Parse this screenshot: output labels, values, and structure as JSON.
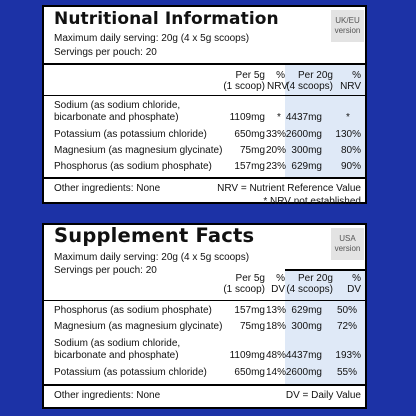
{
  "uk": {
    "title": "Nutritional Information",
    "badge": [
      "UK/EU",
      "version"
    ],
    "serving": "Maximum daily serving: 20g (4 x 5g scoops)",
    "servings_per_pouch": "Servings per pouch: 20",
    "headers": {
      "per5": [
        "Per 5g",
        "(1 scoop)"
      ],
      "pct5": [
        "%",
        "NRV"
      ],
      "per20": [
        "Per 20g",
        "(4 scoops)"
      ],
      "pct20": [
        "%",
        "NRV"
      ]
    },
    "rows": [
      {
        "name": [
          "Sodium (as sodium chloride,",
          "bicarbonate and phosphate)"
        ],
        "per5": "1109mg",
        "pct5": "*",
        "per20": "4437mg",
        "pct20": "*"
      },
      {
        "name": [
          "Potassium (as potassium chloride)"
        ],
        "per5": "650mg",
        "pct5": "33%",
        "per20": "2600mg",
        "pct20": "130%"
      },
      {
        "name": [
          "Magnesium (as magnesium glycinate)"
        ],
        "per5": "75mg",
        "pct5": "20%",
        "per20": "300mg",
        "pct20": "80%"
      },
      {
        "name": [
          "Phosphorus (as sodium phosphate)"
        ],
        "per5": "157mg",
        "pct5": "23%",
        "per20": "629mg",
        "pct20": "90%"
      }
    ],
    "other_ingredients": "Other ingredients: None",
    "footnote_1": "NRV = Nutrient Reference Value",
    "footnote_2": "* NRV not established"
  },
  "us": {
    "title": "Supplement Facts",
    "badge": [
      "USA",
      "version"
    ],
    "serving": "Maximum daily serving: 20g (4 x 5g scoops)",
    "servings_per_pouch": "Servings per pouch: 20",
    "headers": {
      "per5": [
        "Per 5g",
        "(1 scoop)"
      ],
      "pct5": [
        "%",
        "DV"
      ],
      "per20": [
        "Per 20g",
        "(4 scoops)"
      ],
      "pct20": [
        "%",
        "DV"
      ]
    },
    "rows": [
      {
        "name": [
          "Phosphorus (as sodium phosphate)"
        ],
        "per5": "157mg",
        "pct5": "13%",
        "per20": "629mg",
        "pct20": "50%"
      },
      {
        "name": [
          "Magnesium (as magnesium glycinate)"
        ],
        "per5": "75mg",
        "pct5": "18%",
        "per20": "300mg",
        "pct20": "72%"
      },
      {
        "name": [
          "Sodium (as sodium chloride,",
          "bicarbonate and phosphate)"
        ],
        "per5": "1109mg",
        "pct5": "48%",
        "per20": "4437mg",
        "pct20": "193%"
      },
      {
        "name": [
          "Potassium (as potassium chloride)"
        ],
        "per5": "650mg",
        "pct5": "14%",
        "per20": "2600mg",
        "pct20": "55%"
      }
    ],
    "other_ingredients": "Other ingredients: None",
    "footnote_1": "DV = Daily Value"
  },
  "colors": {
    "background": "#1c32a6",
    "highlight_column": "#dfe9f7",
    "badge_background": "#e3e3e3"
  }
}
